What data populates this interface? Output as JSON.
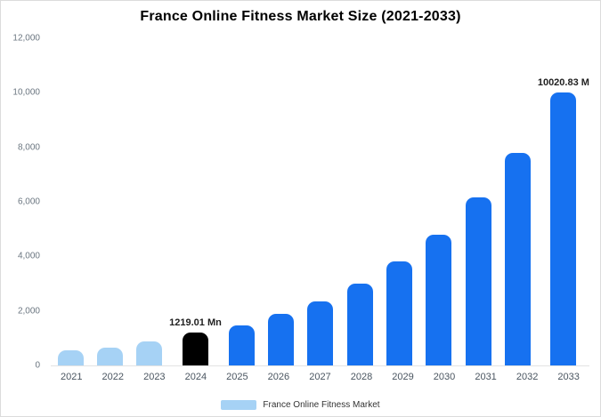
{
  "title": "France Online Fitness Market Size (2021-2033)",
  "legend": {
    "label": "France Online Fitness Market"
  },
  "palette": {
    "lightBlue": "#A6D2F5",
    "blue": "#1671F0",
    "black": "#000000"
  },
  "chart_data": {
    "type": "bar",
    "title": "France Online Fitness Market Size (2021-2033)",
    "categories": [
      "2021",
      "2022",
      "2023",
      "2024",
      "2025",
      "2026",
      "2027",
      "2028",
      "2029",
      "2030",
      "2031",
      "2032",
      "2033"
    ],
    "values": [
      550,
      655,
      875,
      1219.01,
      1460,
      1880,
      2335,
      2985,
      3825,
      4800,
      6160,
      7785,
      10020.83
    ],
    "bar_colors": [
      "lightBlue",
      "lightBlue",
      "lightBlue",
      "black",
      "blue",
      "blue",
      "blue",
      "blue",
      "blue",
      "blue",
      "blue",
      "blue",
      "blue"
    ],
    "annotations": [
      {
        "category": "2024",
        "text": "1219.01 Mn"
      },
      {
        "category": "2033",
        "text": "10020.83 M"
      }
    ],
    "xlabel": "",
    "ylabel": "",
    "ylim": [
      0,
      12000
    ],
    "yticks": [
      0,
      2000,
      4000,
      6000,
      8000,
      10000,
      12000
    ],
    "ytick_labels": [
      "0",
      "2,000",
      "4,000",
      "6,000",
      "8,000",
      "10,000",
      "12,000"
    ],
    "grid": false,
    "legend_position": "bottom",
    "legend_entries": [
      "France Online Fitness Market"
    ]
  }
}
